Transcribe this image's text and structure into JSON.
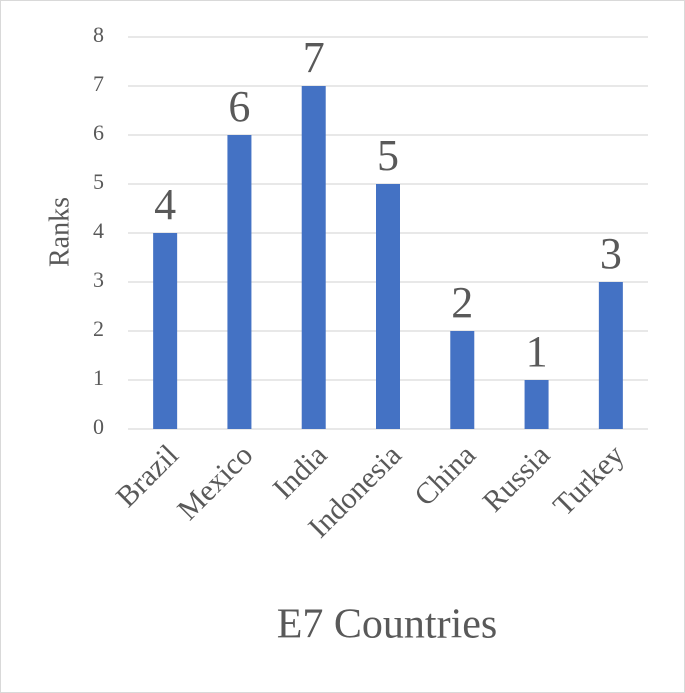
{
  "chart_data": {
    "type": "bar",
    "xlabel": "E7 Countries",
    "ylabel": "Ranks",
    "categories": [
      "Brazil",
      "Mexico",
      "India",
      "Indonesia",
      "China",
      "Russia",
      "Turkey"
    ],
    "values": [
      4,
      6,
      7,
      5,
      2,
      1,
      3
    ],
    "color": "#4472c4",
    "ylim": [
      0,
      8
    ],
    "yticks": [
      0,
      1,
      2,
      3,
      4,
      5,
      6,
      7,
      8
    ],
    "grid": true
  }
}
